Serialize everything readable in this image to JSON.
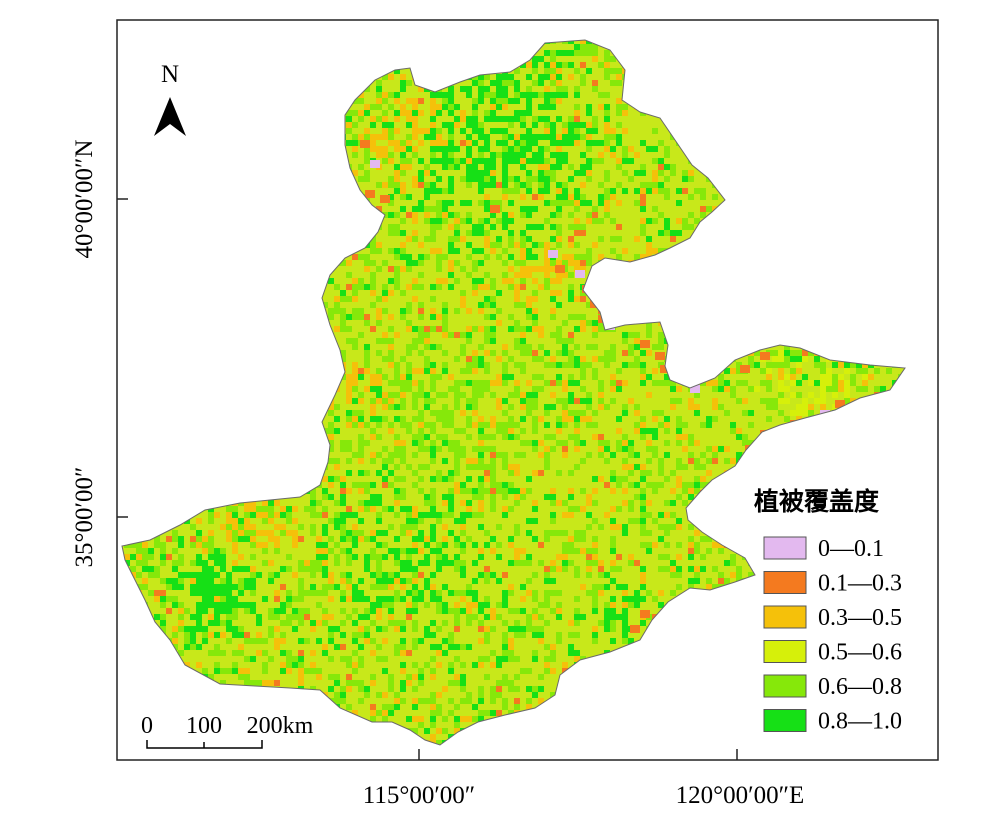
{
  "map": {
    "north_label": "N",
    "lat_labels": [
      "40°00′00″N",
      "35°00′00″"
    ],
    "lon_labels": [
      "115°00′00″",
      "120°00′00″E"
    ],
    "scale_bar": {
      "labels": [
        "0",
        "100",
        "200km"
      ]
    },
    "legend": {
      "title": "植被覆盖度",
      "items": [
        {
          "label": "0—0.1",
          "color": "#e3b9ef"
        },
        {
          "label": "0.1—0.3",
          "color": "#f47a1f"
        },
        {
          "label": "0.3—0.5",
          "color": "#f5c10a"
        },
        {
          "label": "0.5—0.6",
          "color": "#d6f00a"
        },
        {
          "label": "0.6—0.8",
          "color": "#86e80a"
        },
        {
          "label": "0.8—1.0",
          "color": "#16e016"
        }
      ]
    }
  }
}
